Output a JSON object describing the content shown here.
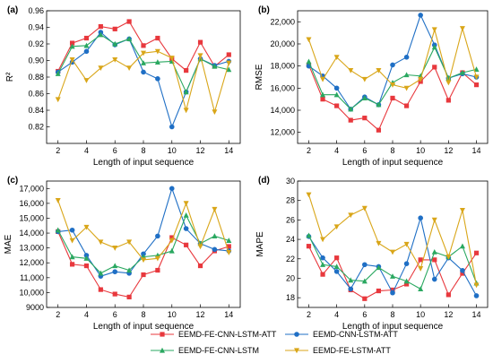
{
  "chart_data": [
    {
      "type": "line",
      "panel_label": "(a)",
      "ylabel": "R²",
      "xlabel": "Length of input sequence",
      "ylim": [
        0.8,
        0.96
      ],
      "yticks": [
        0.82,
        0.84,
        0.86,
        0.88,
        0.9,
        0.92,
        0.94,
        0.96
      ],
      "ytick_labels": [
        "0.82",
        "0.84",
        "0.86",
        "0.88",
        "0.90",
        "0.92",
        "0.94",
        "0.96"
      ],
      "xlim": [
        1.2,
        14.8
      ],
      "xticks": [
        2,
        4,
        6,
        8,
        10,
        12,
        14
      ],
      "x": [
        2,
        3,
        4,
        5,
        6,
        7,
        8,
        9,
        10,
        11,
        12,
        13,
        14
      ],
      "series": [
        {
          "name": "EEMD-FE-CNN-LSTM-ATT",
          "values": [
            0.887,
            0.921,
            0.927,
            0.941,
            0.938,
            0.947,
            0.918,
            0.927,
            0.902,
            0.888,
            0.922,
            0.893,
            0.907
          ]
        },
        {
          "name": "EEMD-CNN-LSTM-ATT",
          "values": [
            0.886,
            0.898,
            0.911,
            0.934,
            0.919,
            0.926,
            0.886,
            0.878,
            0.82,
            0.862,
            0.902,
            0.894,
            0.899
          ]
        },
        {
          "name": "EEMD-FE-CNN-LSTM",
          "values": [
            0.884,
            0.917,
            0.918,
            0.931,
            0.92,
            0.926,
            0.897,
            0.898,
            0.899,
            0.862,
            0.902,
            0.893,
            0.889
          ]
        },
        {
          "name": "EEMD-FE-LSTM-ATT",
          "values": [
            0.853,
            0.901,
            0.876,
            0.891,
            0.901,
            0.891,
            0.909,
            0.911,
            0.903,
            0.84,
            0.906,
            0.838,
            0.897
          ]
        }
      ]
    },
    {
      "type": "line",
      "panel_label": "(b)",
      "ylabel": "RMSE",
      "xlabel": "Length of input sequence",
      "ylim": [
        11000,
        23000
      ],
      "yticks": [
        12000,
        14000,
        16000,
        18000,
        20000,
        22000
      ],
      "ytick_labels": [
        "12,000",
        "14,000",
        "16,000",
        "18,000",
        "20,000",
        "22,000"
      ],
      "xlim": [
        1.2,
        14.8
      ],
      "xticks": [
        2,
        4,
        6,
        8,
        10,
        12,
        14
      ],
      "x": [
        2,
        3,
        4,
        5,
        6,
        7,
        8,
        9,
        10,
        11,
        12,
        13,
        14
      ],
      "series": [
        {
          "name": "EEMD-FE-CNN-LSTM-ATT",
          "values": [
            18100,
            15000,
            14400,
            13100,
            13300,
            12200,
            15100,
            14400,
            16600,
            17900,
            14900,
            17400,
            16300
          ]
        },
        {
          "name": "EEMD-CNN-LSTM-ATT",
          "values": [
            18000,
            17100,
            16000,
            14100,
            15200,
            14500,
            18100,
            18800,
            22600,
            19900,
            16900,
            17300,
            17000
          ]
        },
        {
          "name": "EEMD-FE-CNN-LSTM",
          "values": [
            18400,
            15400,
            15400,
            14100,
            15100,
            14500,
            16500,
            17200,
            17100,
            19700,
            16900,
            17400,
            17700
          ]
        },
        {
          "name": "EEMD-FE-LSTM-ATT",
          "values": [
            20400,
            16800,
            18800,
            17600,
            16800,
            17600,
            16300,
            16000,
            16800,
            21300,
            16500,
            21400,
            17000
          ]
        }
      ]
    },
    {
      "type": "line",
      "panel_label": "(c)",
      "ylabel": "MAE",
      "xlabel": "Length of input sequence",
      "ylim": [
        9000,
        17500
      ],
      "yticks": [
        9000,
        10000,
        11000,
        12000,
        13000,
        14000,
        15000,
        16000,
        17000
      ],
      "ytick_labels": [
        "9000",
        "10,000",
        "11,000",
        "12,000",
        "13,000",
        "14,000",
        "15,000",
        "16,000",
        "17,000"
      ],
      "xlim": [
        1.2,
        14.8
      ],
      "xticks": [
        2,
        4,
        6,
        8,
        10,
        12,
        14
      ],
      "x": [
        2,
        3,
        4,
        5,
        6,
        7,
        8,
        9,
        10,
        11,
        12,
        13,
        14
      ],
      "series": [
        {
          "name": "EEMD-FE-CNN-LSTM-ATT",
          "values": [
            14100,
            11900,
            11800,
            10200,
            9900,
            9700,
            11200,
            11500,
            13700,
            13200,
            11800,
            12800,
            13100
          ]
        },
        {
          "name": "EEMD-CNN-LSTM-ATT",
          "values": [
            14100,
            14200,
            12500,
            11100,
            11400,
            11300,
            12600,
            13800,
            17000,
            14300,
            13300,
            12900,
            12800
          ]
        },
        {
          "name": "EEMD-FE-CNN-LSTM",
          "values": [
            14200,
            12400,
            12300,
            11300,
            11800,
            11500,
            12400,
            12500,
            12800,
            15200,
            13300,
            13800,
            13500
          ]
        },
        {
          "name": "EEMD-FE-LSTM-ATT",
          "values": [
            16200,
            13500,
            14400,
            13400,
            13000,
            13400,
            12200,
            12300,
            13500,
            16000,
            13100,
            15600,
            12700
          ]
        }
      ]
    },
    {
      "type": "line",
      "panel_label": "(d)",
      "ylabel": "MAPE",
      "xlabel": "Length of input sequence",
      "ylim": [
        17,
        30
      ],
      "yticks": [
        18,
        20,
        22,
        24,
        26,
        28,
        30
      ],
      "ytick_labels": [
        "18",
        "20",
        "22",
        "24",
        "26",
        "28",
        "30"
      ],
      "xlim": [
        1.2,
        14.8
      ],
      "xticks": [
        2,
        4,
        6,
        8,
        10,
        12,
        14
      ],
      "x": [
        2,
        3,
        4,
        5,
        6,
        7,
        8,
        9,
        10,
        11,
        12,
        13,
        14
      ],
      "series": [
        {
          "name": "EEMD-FE-CNN-LSTM-ATT",
          "values": [
            23.3,
            20.4,
            22.1,
            18.8,
            17.9,
            18.7,
            18.8,
            19.4,
            21.9,
            21.9,
            18.3,
            20.5,
            22.6
          ]
        },
        {
          "name": "EEMD-CNN-LSTM-ATT",
          "values": [
            24.3,
            22.1,
            20.7,
            18.9,
            21.4,
            21.2,
            18.5,
            21.5,
            26.2,
            19.9,
            22.1,
            20.8,
            18.2
          ]
        },
        {
          "name": "EEMD-FE-CNN-LSTM",
          "values": [
            24.4,
            21.4,
            21.2,
            19.8,
            19.7,
            21.1,
            20.2,
            19.7,
            18.9,
            22.7,
            22.2,
            23.3,
            19.5
          ]
        },
        {
          "name": "EEMD-FE-LSTM-ATT",
          "values": [
            28.6,
            24.0,
            25.3,
            26.5,
            27.2,
            23.6,
            22.7,
            23.5,
            21.0,
            26.0,
            22.2,
            27.0,
            19.3
          ]
        }
      ]
    }
  ],
  "colors": {
    "EEMD-FE-CNN-LSTM-ATT": "#e8383d",
    "EEMD-CNN-LSTM-ATT": "#1f6fc5",
    "EEMD-FE-CNN-LSTM": "#2aa860",
    "EEMD-FE-LSTM-ATT": "#d9a619"
  },
  "markers": {
    "EEMD-FE-CNN-LSTM-ATT": "square",
    "EEMD-CNN-LSTM-ATT": "circle",
    "EEMD-FE-CNN-LSTM": "triangle",
    "EEMD-FE-LSTM-ATT": "down-triangle"
  },
  "legend": {
    "position": "bottom",
    "items": [
      "EEMD-FE-CNN-LSTM-ATT",
      "EEMD-CNN-LSTM-ATT",
      "EEMD-FE-CNN-LSTM",
      "EEMD-FE-LSTM-ATT"
    ]
  }
}
